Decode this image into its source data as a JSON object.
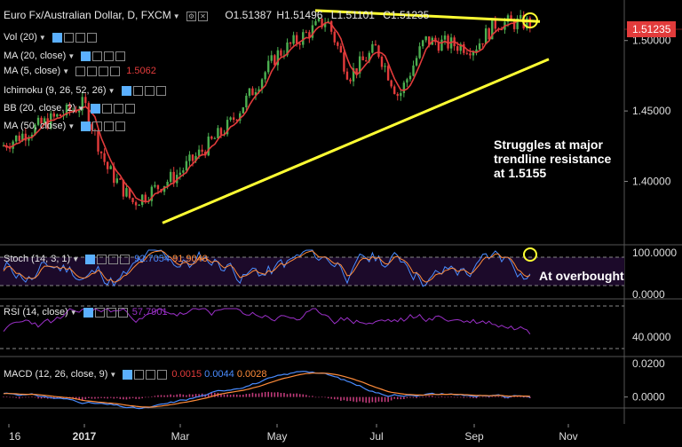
{
  "header": {
    "symbol": "Euro Fx/Australian Dollar, D, FXCM",
    "open": "O1.51387",
    "high": "H1.51496",
    "low": "L1.51101",
    "close": "C1.51235"
  },
  "overlays": [
    {
      "label": "Vol (20)",
      "value": ""
    },
    {
      "label": "MA (20, close)",
      "value": ""
    },
    {
      "label": "MA (5, close)",
      "value": "1.5062"
    },
    {
      "label": "Ichimoku (9, 26, 52, 26)",
      "value": ""
    },
    {
      "label": "BB (20, close, 2)",
      "value": ""
    },
    {
      "label": "MA (50, close)",
      "value": ""
    }
  ],
  "stoch": {
    "label": "Stoch (14, 3, 1)",
    "v1": "92.7054",
    "v2": "91.9040"
  },
  "rsi": {
    "label": "RSI (14, close)",
    "v1": "57.7901"
  },
  "macd": {
    "label": "MACD (12, 26, close, 9)",
    "v1": "0.0015",
    "v2": "0.0044",
    "v3": "0.0028"
  },
  "price_label": "1.51235",
  "annotations": {
    "main": [
      "Struggles at major",
      "trendline resistance",
      "at 1.5155"
    ],
    "stoch": "At overbought"
  },
  "colors": {
    "background": "#000000",
    "candle_up": "#4caf50",
    "candle_down": "#e23b3b",
    "ma": "#e23b3b",
    "trendline": "#ffff33",
    "stoch_k": "#4a8cff",
    "stoch_d": "#ff8c3a",
    "rsi": "#9b30c8",
    "macd": "#4a8cff",
    "signal": "#ff8c3a",
    "hist": "#c03b7a",
    "panel_fill": "#1c0a2a"
  },
  "chart_data": [
    {
      "type": "candlestick",
      "title": "Euro Fx/Australian Dollar, D, FXCM",
      "x_ticks": [
        "16",
        "2017",
        "Mar",
        "May",
        "Jul",
        "Sep",
        "Nov"
      ],
      "y_ticks": [
        "1.50000",
        "1.45000",
        "1.40000"
      ],
      "ylim": [
        1.355,
        1.525
      ],
      "last_price": 1.51235,
      "resistance_line": {
        "from": [
          "Apr",
          1.521
        ],
        "to": [
          "Sep",
          1.5135
        ]
      },
      "support_line": {
        "from": [
          "Feb",
          1.373
        ],
        "to": [
          "Oct",
          1.488
        ]
      },
      "series_points": [
        [
          "Dec",
          1.44
        ],
        [
          "Jan",
          1.455
        ],
        [
          "Jan",
          1.41
        ],
        [
          "Feb",
          1.385
        ],
        [
          "Mar",
          1.405
        ],
        [
          "Apr",
          1.44
        ],
        [
          "May",
          1.49
        ],
        [
          "Jun",
          1.515
        ],
        [
          "Jun",
          1.475
        ],
        [
          "Jul",
          1.495
        ],
        [
          "Jul",
          1.46
        ],
        [
          "Aug",
          1.5
        ],
        [
          "Sep",
          1.495
        ],
        [
          "Sep",
          1.5125
        ]
      ]
    },
    {
      "type": "line",
      "title": "Stoch (14, 3, 1)",
      "y_ticks": [
        "100.0000",
        "0.0000"
      ],
      "ylim": [
        0,
        100
      ],
      "series": [
        {
          "name": "%K",
          "last": 92.7054
        },
        {
          "name": "%D",
          "last": 91.904
        }
      ]
    },
    {
      "type": "line",
      "title": "RSI (14, close)",
      "y_ticks": [
        "40.0000"
      ],
      "ylim": [
        20,
        80
      ],
      "series": [
        {
          "name": "RSI",
          "last": 57.7901
        }
      ]
    },
    {
      "type": "line",
      "title": "MACD (12, 26, close, 9)",
      "y_ticks": [
        "0.0200",
        "0.0000"
      ],
      "ylim": [
        -0.015,
        0.022
      ],
      "series": [
        {
          "name": "histogram",
          "last": 0.0015
        },
        {
          "name": "MACD",
          "last": 0.0044
        },
        {
          "name": "signal",
          "last": 0.0028
        }
      ]
    }
  ]
}
